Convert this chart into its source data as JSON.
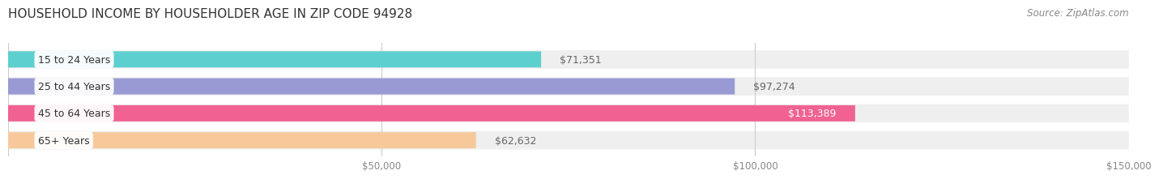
{
  "title": "HOUSEHOLD INCOME BY HOUSEHOLDER AGE IN ZIP CODE 94928",
  "source": "Source: ZipAtlas.com",
  "categories": [
    "15 to 24 Years",
    "25 to 44 Years",
    "45 to 64 Years",
    "65+ Years"
  ],
  "values": [
    71351,
    97274,
    113389,
    62632
  ],
  "bar_colors": [
    "#5ecfcf",
    "#9999d4",
    "#f06292",
    "#f7c99a"
  ],
  "xlim": [
    0,
    150000
  ],
  "xticks": [
    50000,
    100000,
    150000
  ],
  "xtick_labels": [
    "$50,000",
    "$100,000",
    "$150,000"
  ],
  "label_color_inside": "#ffffff",
  "label_color_outside": "#666666",
  "background_color": "#ffffff",
  "row_bg_color": "#efefef",
  "bar_height": 0.6,
  "title_fontsize": 11,
  "source_fontsize": 8.5,
  "label_fontsize": 9,
  "category_fontsize": 9,
  "tick_fontsize": 8.5,
  "inside_threshold": 100000
}
